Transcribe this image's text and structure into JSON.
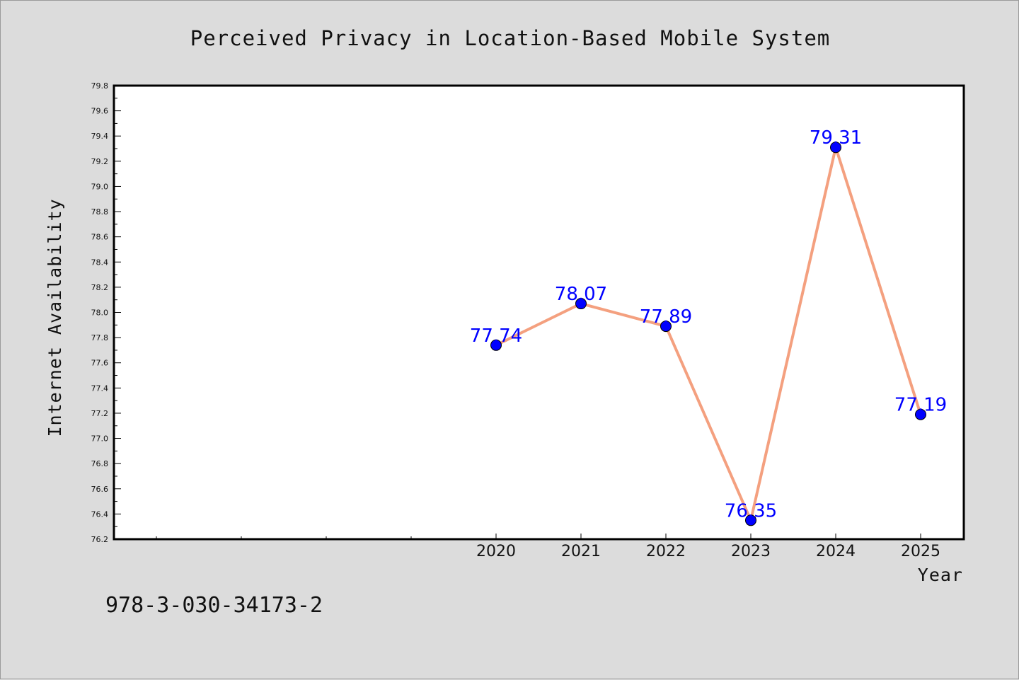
{
  "chart_data": {
    "type": "line",
    "title": "Perceived Privacy in Location-Based Mobile System",
    "xlabel": "Year",
    "ylabel": "Internet Availability",
    "x": [
      "2020",
      "2021",
      "2022",
      "2023",
      "2024",
      "2025"
    ],
    "values": [
      77.74,
      78.07,
      77.89,
      76.35,
      79.31,
      77.19
    ],
    "data_labels": [
      "77.74",
      "78.07",
      "77.89",
      "76.35",
      "79.31",
      "77.19"
    ],
    "ylim": [
      76.2,
      79.8
    ],
    "yticks": [
      "76.2",
      "76.4",
      "76.6",
      "76.8",
      "77.0",
      "77.2",
      "77.4",
      "77.6",
      "77.8",
      "78.0",
      "78.2",
      "78.4",
      "78.6",
      "78.8",
      "79.0",
      "79.2",
      "79.4",
      "79.6",
      "79.8"
    ],
    "grid": false,
    "legend": "none",
    "colors": {
      "line": "#f4a07f",
      "marker": "#0000ff",
      "label": "#0000ff",
      "plot_background": "#ffffff",
      "figure_background": "#dcdcdc"
    }
  },
  "footer": {
    "isbn": "978-3-030-34173-2"
  }
}
